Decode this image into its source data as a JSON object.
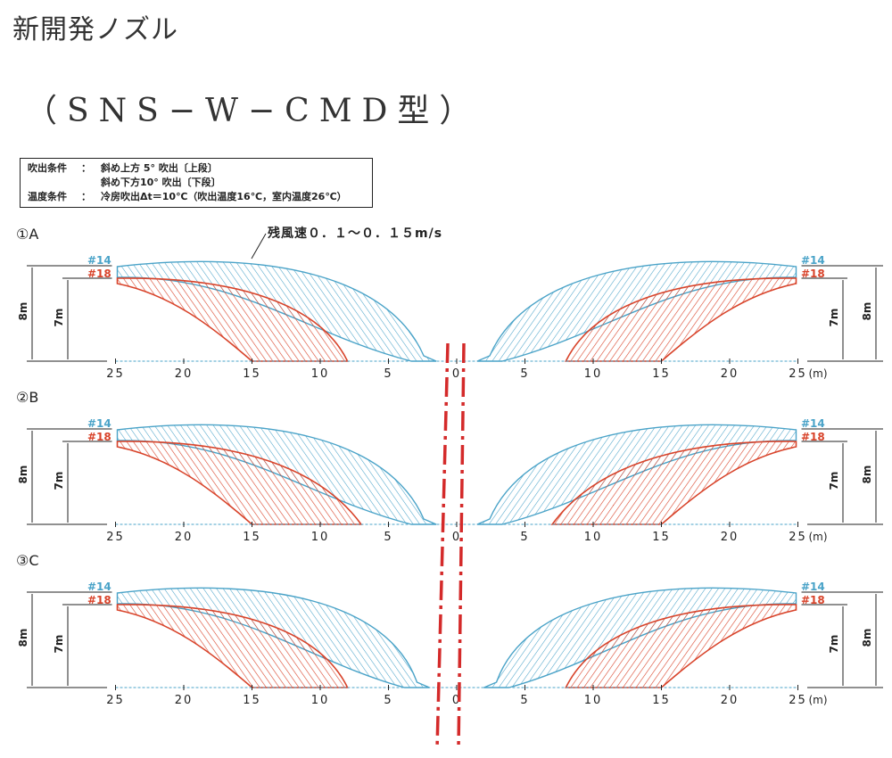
{
  "title": "新開発ノズル",
  "subtitle": "（SNS−W−CMD型）",
  "conditions": [
    {
      "key": "吹出条件",
      "colon": "：",
      "value": "斜め上方 5° 吹出〔上段〕"
    },
    {
      "key": "",
      "colon": "",
      "value": "斜め下方10° 吹出〔下段〕"
    },
    {
      "key": "温度条件",
      "colon": "：",
      "value": "冷房吹出Δt＝10℃（吹出温度16℃，室内温度26℃）"
    }
  ],
  "annotation": "残風速０．１～０．１５m/s",
  "unit": "(m)",
  "nozzles": {
    "upper": "#14",
    "lower": "#18"
  },
  "heights": {
    "upper": "8m",
    "lower": "7m"
  },
  "x_ticks": [
    "25",
    "20",
    "15",
    "10",
    "5",
    "0",
    "5",
    "10",
    "15",
    "20",
    "25"
  ],
  "panels": [
    {
      "label": "①A",
      "blue_reach": 1.5,
      "red_reach": 8
    },
    {
      "label": "②B",
      "blue_reach": 1.5,
      "red_reach": 7
    },
    {
      "label": "③C",
      "blue_reach": 2,
      "red_reach": 8
    }
  ],
  "colors": {
    "upper_jet": "#4aa3c8",
    "lower_jet": "#d8432a",
    "centerline": "#d42a2a",
    "ink": "#222222"
  },
  "chart_data": {
    "type": "diagram",
    "x_unit": "m",
    "x_range": [
      -25,
      25
    ],
    "upper_nozzle": {
      "name": "#14",
      "height_m": 8,
      "direction": "斜め上方5°"
    },
    "lower_nozzle": {
      "name": "#18",
      "height_m": 7,
      "direction": "斜め下方10°"
    }
  }
}
